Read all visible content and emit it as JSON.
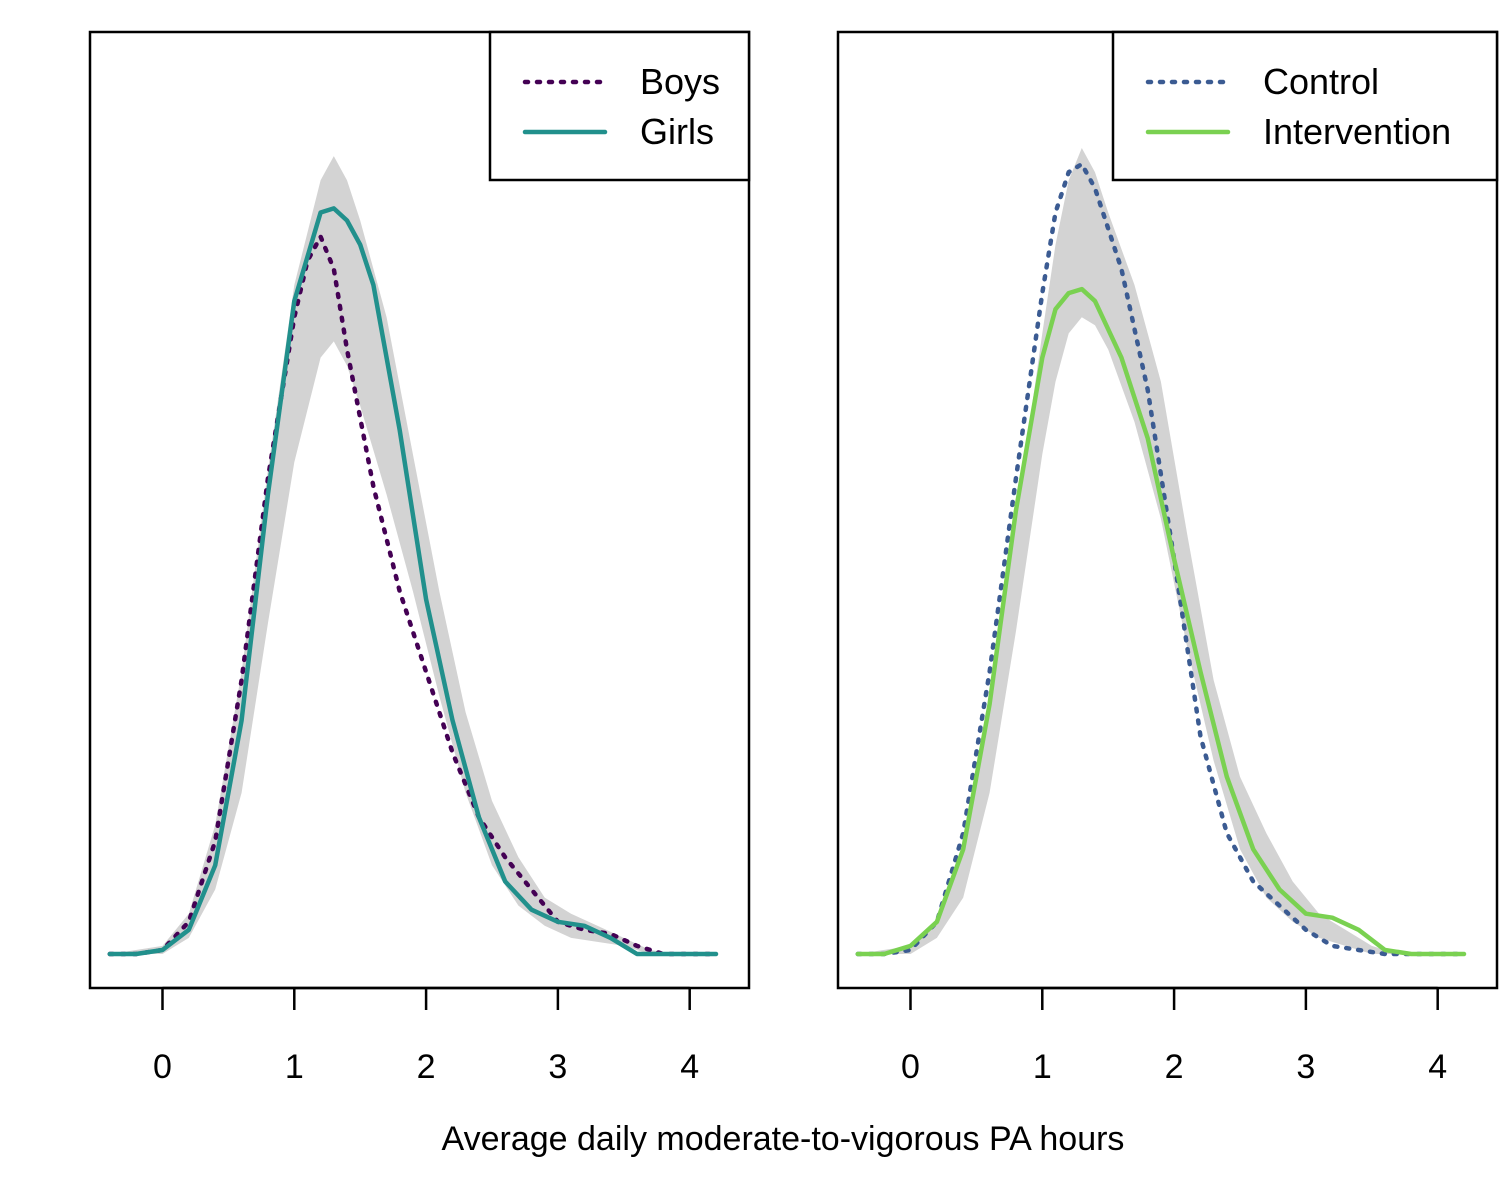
{
  "xlabel": "Average daily moderate-to-vigorous PA hours",
  "chart_data": [
    {
      "type": "line",
      "xlabel": "",
      "ylabel": "",
      "xlim": [
        -0.55,
        4.45
      ],
      "xticks": [
        0,
        1,
        2,
        3,
        4
      ],
      "xtick_labels": [
        "0",
        "1",
        "2",
        "3",
        "4"
      ],
      "yaxis_shown": false,
      "legend_position": "top-right",
      "band": {
        "color": "#d3d3d3",
        "x": [
          -0.4,
          0.0,
          0.2,
          0.4,
          0.6,
          0.8,
          1.0,
          1.2,
          1.3,
          1.4,
          1.5,
          1.7,
          1.9,
          2.1,
          2.3,
          2.5,
          2.7,
          2.9,
          3.1,
          3.3,
          3.5,
          3.7,
          3.9,
          4.2
        ],
        "lower": [
          0,
          0,
          0.02,
          0.08,
          0.2,
          0.41,
          0.61,
          0.74,
          0.76,
          0.73,
          0.68,
          0.57,
          0.45,
          0.32,
          0.2,
          0.11,
          0.06,
          0.035,
          0.02,
          0.015,
          0.01,
          0,
          0,
          0
        ],
        "upper": [
          0,
          0.01,
          0.05,
          0.16,
          0.35,
          0.6,
          0.83,
          0.96,
          0.99,
          0.96,
          0.91,
          0.79,
          0.62,
          0.45,
          0.3,
          0.19,
          0.12,
          0.07,
          0.05,
          0.035,
          0.02,
          0.005,
          0,
          0
        ]
      },
      "series": [
        {
          "name": "Boys",
          "color": "#440154",
          "style": "dotted",
          "x": [
            -0.4,
            -0.2,
            0.0,
            0.2,
            0.4,
            0.6,
            0.8,
            1.0,
            1.1,
            1.2,
            1.3,
            1.4,
            1.6,
            1.8,
            2.0,
            2.2,
            2.4,
            2.6,
            2.8,
            3.0,
            3.2,
            3.4,
            3.6,
            3.8,
            4.0,
            4.2
          ],
          "y": [
            0,
            0,
            0.005,
            0.04,
            0.14,
            0.34,
            0.59,
            0.79,
            0.86,
            0.89,
            0.85,
            0.75,
            0.58,
            0.45,
            0.35,
            0.25,
            0.17,
            0.12,
            0.08,
            0.04,
            0.03,
            0.025,
            0.01,
            0,
            0,
            0
          ]
        },
        {
          "name": "Girls",
          "color": "#21908c",
          "style": "solid",
          "x": [
            -0.4,
            -0.2,
            0.0,
            0.2,
            0.4,
            0.6,
            0.8,
            1.0,
            1.2,
            1.3,
            1.4,
            1.5,
            1.6,
            1.8,
            2.0,
            2.2,
            2.4,
            2.6,
            2.8,
            3.0,
            3.2,
            3.4,
            3.6,
            3.8,
            4.0,
            4.2
          ],
          "y": [
            0,
            0,
            0.005,
            0.03,
            0.11,
            0.29,
            0.57,
            0.81,
            0.92,
            0.925,
            0.91,
            0.88,
            0.83,
            0.65,
            0.44,
            0.29,
            0.17,
            0.09,
            0.055,
            0.04,
            0.035,
            0.02,
            0,
            0,
            0,
            0
          ]
        }
      ]
    },
    {
      "type": "line",
      "xlabel": "",
      "ylabel": "",
      "xlim": [
        -0.55,
        4.45
      ],
      "xticks": [
        0,
        1,
        2,
        3,
        4
      ],
      "xtick_labels": [
        "0",
        "1",
        "2",
        "3",
        "4"
      ],
      "yaxis_shown": false,
      "legend_position": "top-right",
      "band": {
        "color": "#d3d3d3",
        "x": [
          -0.4,
          0.0,
          0.2,
          0.4,
          0.6,
          0.8,
          1.0,
          1.1,
          1.2,
          1.3,
          1.4,
          1.5,
          1.7,
          1.9,
          2.1,
          2.3,
          2.5,
          2.7,
          2.9,
          3.1,
          3.3,
          3.5,
          3.7,
          3.9,
          4.2
        ],
        "lower": [
          0,
          0,
          0.02,
          0.07,
          0.2,
          0.4,
          0.62,
          0.71,
          0.77,
          0.79,
          0.78,
          0.75,
          0.66,
          0.54,
          0.38,
          0.24,
          0.13,
          0.07,
          0.04,
          0.02,
          0.01,
          0,
          0,
          0,
          0
        ],
        "upper": [
          0,
          0.01,
          0.04,
          0.13,
          0.31,
          0.54,
          0.77,
          0.88,
          0.96,
          1.0,
          0.97,
          0.92,
          0.83,
          0.71,
          0.52,
          0.34,
          0.22,
          0.15,
          0.09,
          0.05,
          0.03,
          0.01,
          0,
          0,
          0
        ]
      },
      "series": [
        {
          "name": "Control",
          "color": "#3b5b92",
          "style": "dotted",
          "x": [
            -0.4,
            -0.2,
            0.0,
            0.2,
            0.4,
            0.6,
            0.8,
            1.0,
            1.1,
            1.2,
            1.3,
            1.4,
            1.6,
            1.8,
            2.0,
            2.2,
            2.4,
            2.6,
            2.8,
            3.0,
            3.2,
            3.4,
            3.6,
            3.8,
            4.0,
            4.2
          ],
          "y": [
            0,
            0,
            0.005,
            0.04,
            0.15,
            0.35,
            0.59,
            0.82,
            0.92,
            0.97,
            0.98,
            0.95,
            0.85,
            0.7,
            0.49,
            0.27,
            0.15,
            0.09,
            0.06,
            0.03,
            0.01,
            0.005,
            0,
            0,
            0,
            0
          ]
        },
        {
          "name": "Intervention",
          "color": "#7ad151",
          "style": "solid",
          "x": [
            -0.4,
            -0.2,
            0.0,
            0.2,
            0.4,
            0.6,
            0.8,
            1.0,
            1.1,
            1.2,
            1.3,
            1.4,
            1.6,
            1.8,
            2.0,
            2.2,
            2.4,
            2.6,
            2.8,
            3.0,
            3.2,
            3.4,
            3.6,
            3.8,
            4.0,
            4.2
          ],
          "y": [
            0,
            0,
            0.01,
            0.04,
            0.13,
            0.31,
            0.55,
            0.74,
            0.8,
            0.82,
            0.825,
            0.81,
            0.74,
            0.64,
            0.49,
            0.35,
            0.22,
            0.13,
            0.08,
            0.05,
            0.045,
            0.03,
            0.005,
            0,
            0,
            0
          ]
        }
      ]
    }
  ]
}
